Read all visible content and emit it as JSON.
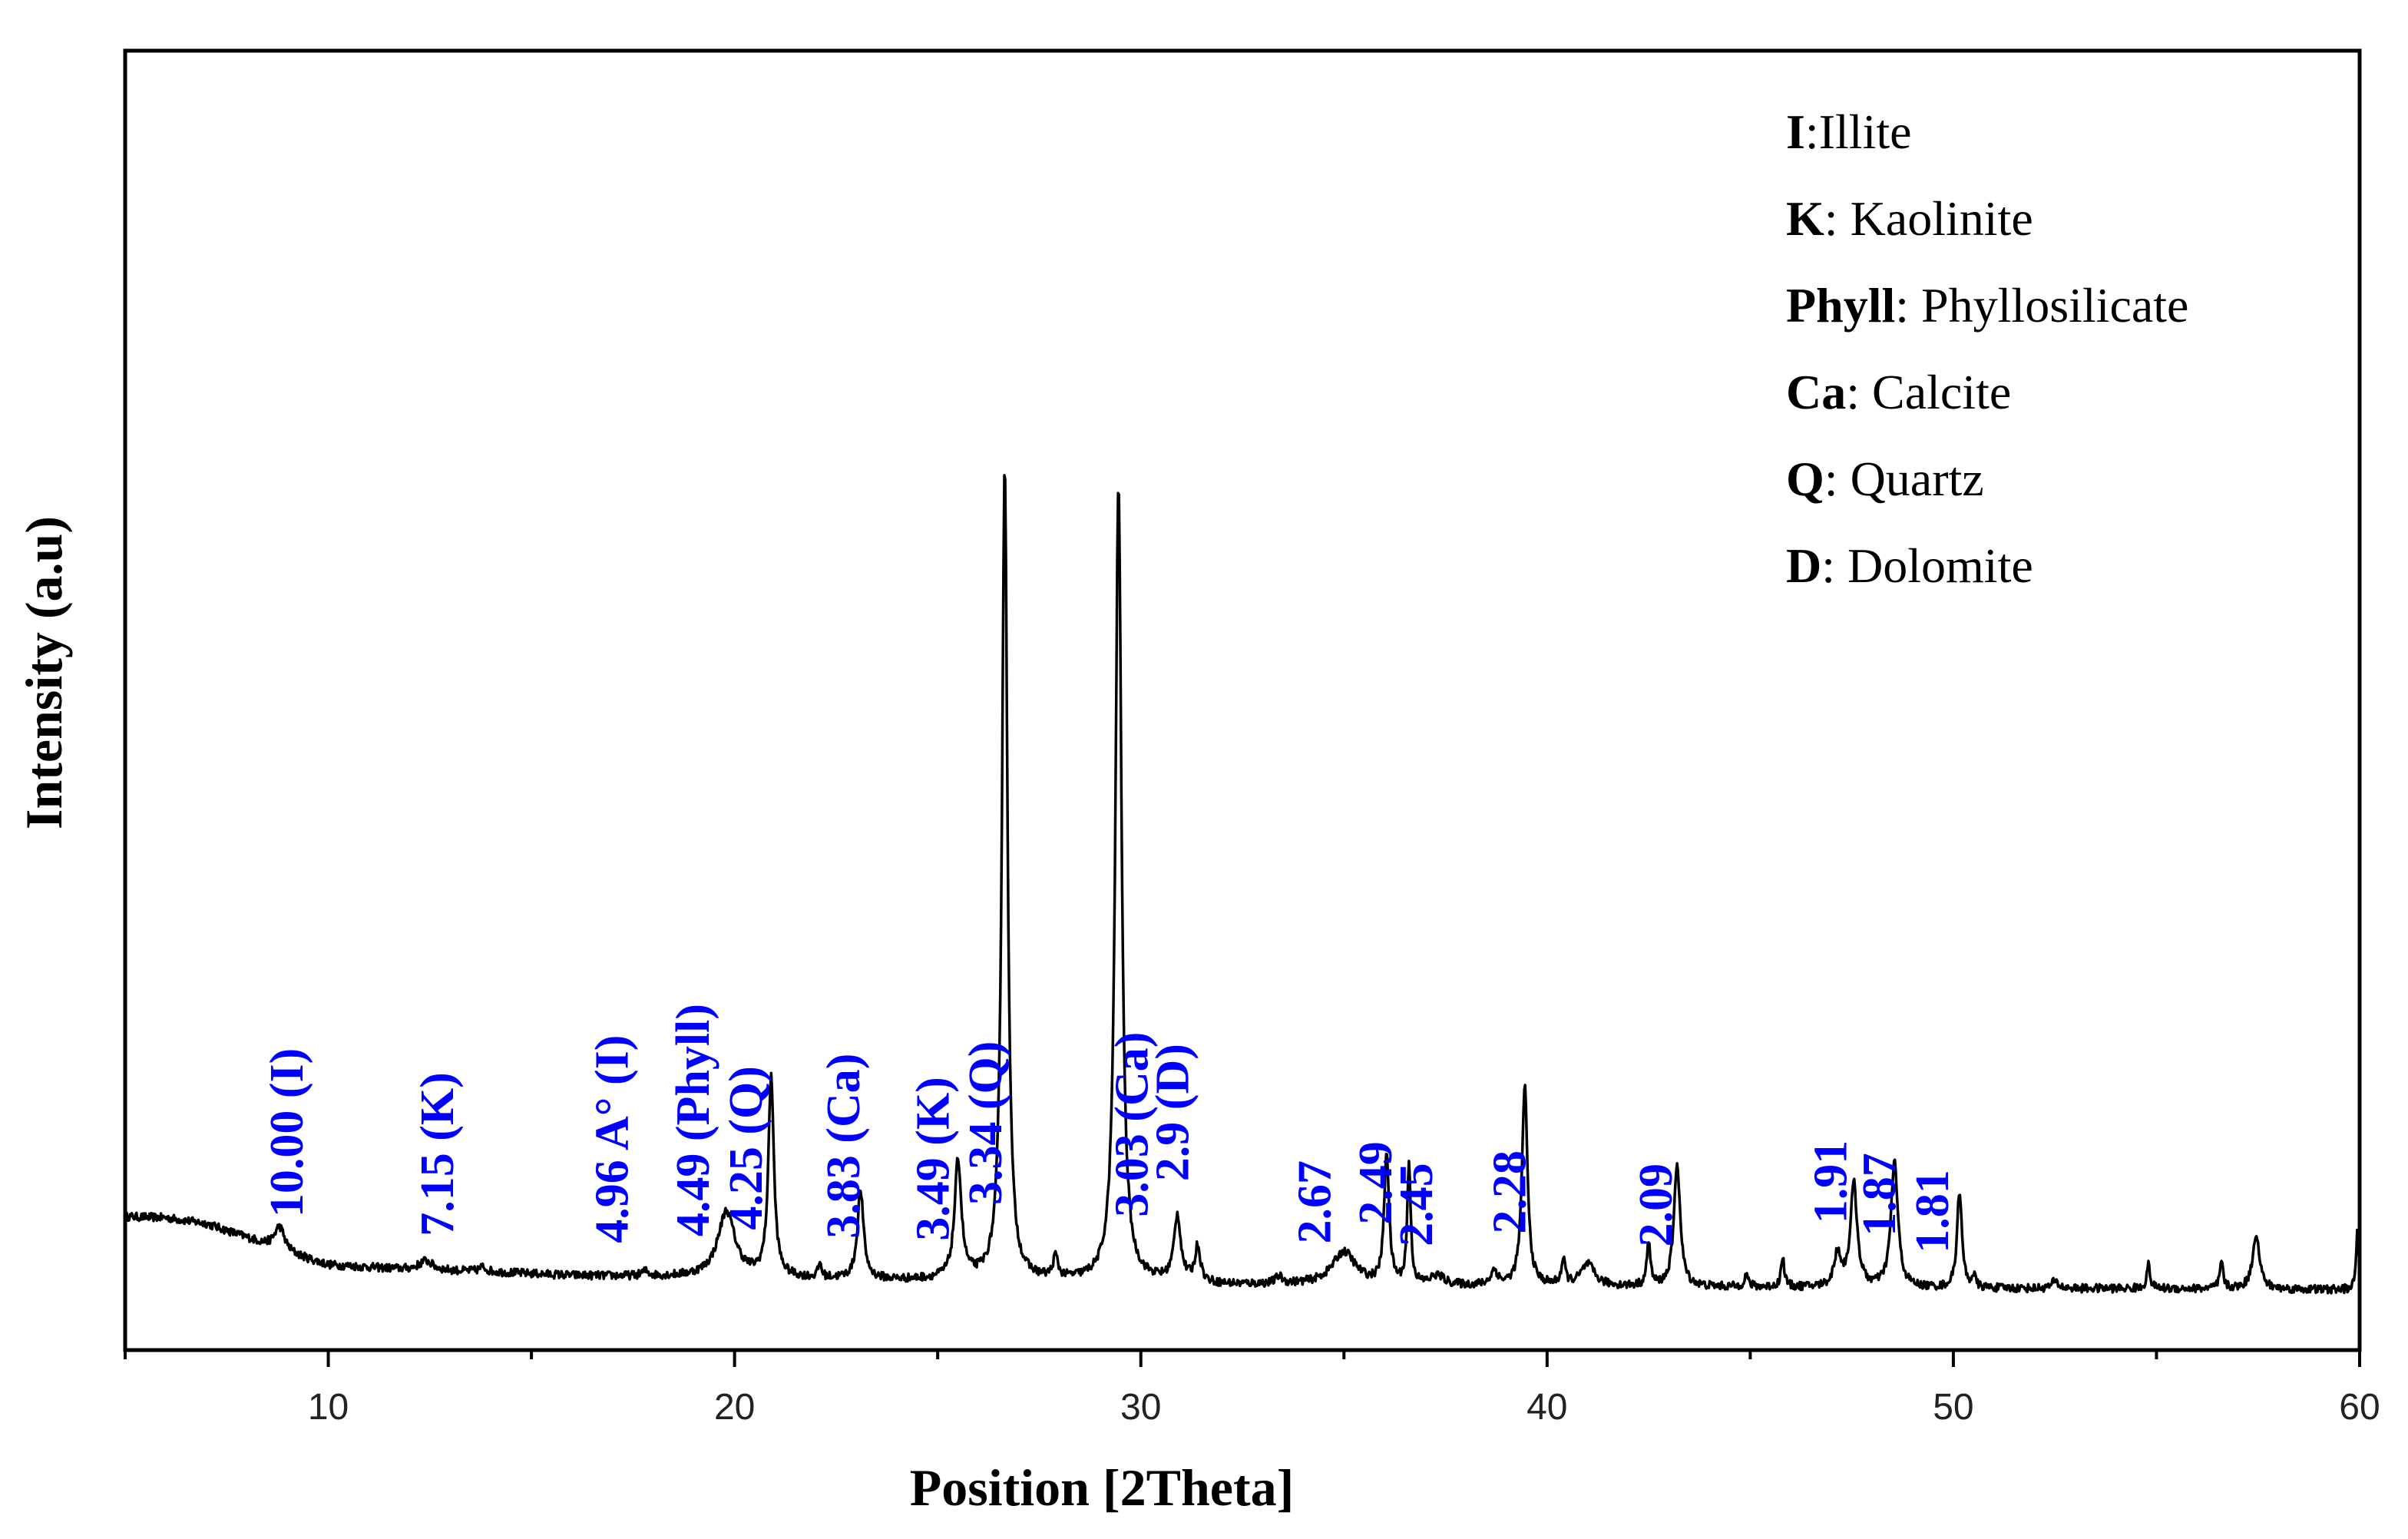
{
  "chart_data": {
    "type": "line",
    "xlabel": "Position [2Theta]",
    "ylabel": "Intensity (a.u)",
    "xlim": [
      5,
      60
    ],
    "ylim": [
      -0.05,
      1.05
    ],
    "xticks": [
      "10",
      "20",
      "30",
      "40",
      "50",
      "60"
    ],
    "grid": false,
    "line_color": "#000000",
    "label_color": "#0000ff",
    "legend": {
      "placement": "top-right",
      "entries": [
        {
          "key": "I",
          "sep": ":",
          "text": "Illite"
        },
        {
          "key": "K",
          "sep": ": ",
          "text": "Kaolinite"
        },
        {
          "key": "Phyll",
          "sep": ": ",
          "text": "Phyllosilicate"
        },
        {
          "key": "Ca",
          "sep": ": ",
          "text": "Calcite"
        },
        {
          "key": "Q",
          "sep": ": ",
          "text": "Quartz"
        },
        {
          "key": "D",
          "sep": ": ",
          "text": "Dolomite"
        }
      ]
    },
    "baseline": [
      [
        5,
        0.063
      ],
      [
        6,
        0.062
      ],
      [
        7,
        0.057
      ],
      [
        8,
        0.045
      ],
      [
        9,
        0.032
      ],
      [
        10,
        0.022
      ],
      [
        12,
        0.018
      ],
      [
        14,
        0.016
      ],
      [
        16,
        0.013
      ],
      [
        18,
        0.012
      ],
      [
        20,
        0.012
      ],
      [
        22,
        0.01
      ],
      [
        24,
        0.009
      ],
      [
        26,
        0.009
      ],
      [
        28,
        0.008
      ],
      [
        30,
        0.008
      ],
      [
        32,
        0.005
      ],
      [
        34,
        0.005
      ],
      [
        36,
        0.004
      ],
      [
        40,
        0.004
      ],
      [
        45,
        0.003
      ],
      [
        50,
        0.002
      ],
      [
        55,
        0.002
      ],
      [
        60,
        0.001
      ]
    ],
    "peaks": [
      {
        "x": 8.8,
        "h": 0.02,
        "w": 0.15
      },
      {
        "x": 12.4,
        "h": 0.008,
        "w": 0.2
      },
      {
        "x": 13.8,
        "h": 0.004,
        "w": 0.1
      },
      {
        "x": 17.8,
        "h": 0.004,
        "w": 0.1
      },
      {
        "x": 19.8,
        "h": 0.055,
        "w": 0.25
      },
      {
        "x": 20.9,
        "h": 0.17,
        "w": 0.08
      },
      {
        "x": 22.1,
        "h": 0.012,
        "w": 0.05
      },
      {
        "x": 23.1,
        "h": 0.075,
        "w": 0.09
      },
      {
        "x": 25.5,
        "h": 0.1,
        "w": 0.1
      },
      {
        "x": 26.65,
        "h": 0.69,
        "w": 0.08
      },
      {
        "x": 27.9,
        "h": 0.018,
        "w": 0.07
      },
      {
        "x": 29.45,
        "h": 0.675,
        "w": 0.09
      },
      {
        "x": 30.9,
        "h": 0.055,
        "w": 0.1
      },
      {
        "x": 31.4,
        "h": 0.03,
        "w": 0.08
      },
      {
        "x": 33.4,
        "h": 0.006,
        "w": 0.1
      },
      {
        "x": 35.0,
        "h": 0.028,
        "w": 0.35
      },
      {
        "x": 36.05,
        "h": 0.112,
        "w": 0.07
      },
      {
        "x": 36.6,
        "h": 0.103,
        "w": 0.05
      },
      {
        "x": 37.3,
        "h": 0.008,
        "w": 0.2
      },
      {
        "x": 38.7,
        "h": 0.012,
        "w": 0.1
      },
      {
        "x": 39.45,
        "h": 0.17,
        "w": 0.08
      },
      {
        "x": 40.4,
        "h": 0.02,
        "w": 0.06
      },
      {
        "x": 41.0,
        "h": 0.018,
        "w": 0.2
      },
      {
        "x": 42.5,
        "h": 0.038,
        "w": 0.05
      },
      {
        "x": 43.2,
        "h": 0.105,
        "w": 0.09
      },
      {
        "x": 44.9,
        "h": 0.01,
        "w": 0.06
      },
      {
        "x": 45.8,
        "h": 0.025,
        "w": 0.05
      },
      {
        "x": 47.15,
        "h": 0.028,
        "w": 0.1
      },
      {
        "x": 47.55,
        "h": 0.087,
        "w": 0.1
      },
      {
        "x": 48.55,
        "h": 0.107,
        "w": 0.1
      },
      {
        "x": 50.15,
        "h": 0.083,
        "w": 0.07
      },
      {
        "x": 50.5,
        "h": 0.01,
        "w": 0.05
      },
      {
        "x": 52.5,
        "h": 0.006,
        "w": 0.1
      },
      {
        "x": 54.8,
        "h": 0.02,
        "w": 0.05
      },
      {
        "x": 56.6,
        "h": 0.022,
        "w": 0.05
      },
      {
        "x": 57.45,
        "h": 0.047,
        "w": 0.1
      },
      {
        "x": 59.95,
        "h": 0.05,
        "w": 0.04
      }
    ],
    "annotations": [
      {
        "text": "10.00 (I)",
        "x": 9.1
      },
      {
        "text": "7.15 (K)",
        "x": 12.8
      },
      {
        "text": "4.96 A° (I)",
        "x": 17.1
      },
      {
        "text": "4.49 (Phyll)",
        "x": 19.1
      },
      {
        "text": "4.25 (Q)",
        "x": 20.4
      },
      {
        "text": "3.83 (Ca)",
        "x": 22.8
      },
      {
        "text": "3.49 (K)",
        "x": 25.0
      },
      {
        "text": "3.34 (Q)",
        "x": 26.3
      },
      {
        "text": "3.03 (Ca)",
        "x": 29.9
      },
      {
        "text": "2.9 (D)",
        "x": 30.9
      },
      {
        "text": "2.67",
        "x": 34.4
      },
      {
        "text": "2.49",
        "x": 35.9
      },
      {
        "text": "2.45",
        "x": 36.9
      },
      {
        "text": "2.28",
        "x": 39.2
      },
      {
        "text": "2.09",
        "x": 42.8
      },
      {
        "text": "1.91",
        "x": 47.1
      },
      {
        "text": "1.87",
        "x": 48.3
      },
      {
        "text": "1.81",
        "x": 49.6
      }
    ]
  }
}
